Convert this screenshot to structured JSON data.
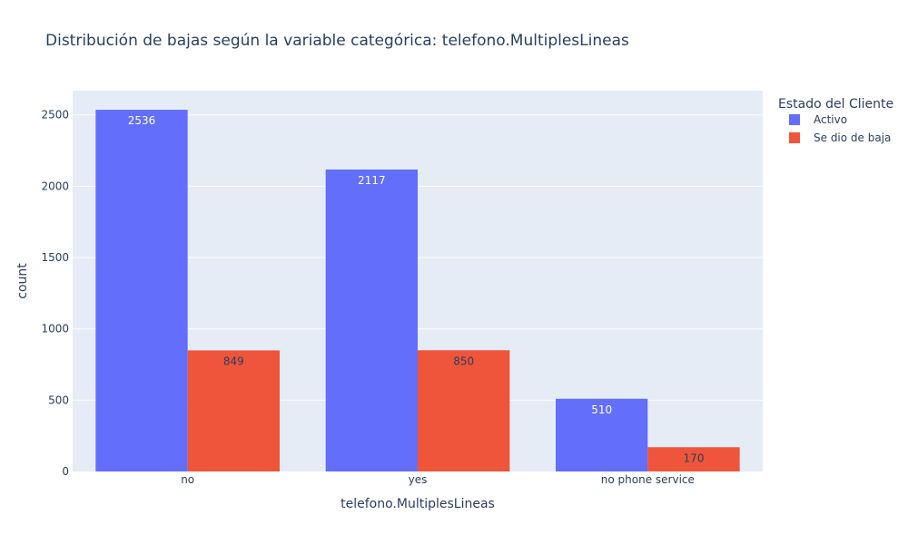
{
  "chart_data": {
    "type": "bar",
    "title": "Distribución de bajas según la variable categórica: telefono.MultiplesLineas",
    "xlabel": "telefono.MultiplesLineas",
    "ylabel": "count",
    "categories": [
      "no",
      "yes",
      "no phone service"
    ],
    "series": [
      {
        "name": "Activo",
        "values": [
          2536,
          2117,
          510
        ],
        "color": "#636efa",
        "label_color": "#ffffff"
      },
      {
        "name": "Se dio de baja",
        "values": [
          849,
          850,
          170
        ],
        "color": "#ef553b",
        "label_color": "#2a3f5f"
      }
    ],
    "ylim": [
      0,
      2670
    ],
    "yticks": [
      0,
      500,
      1000,
      1500,
      2000,
      2500
    ],
    "legend": {
      "title": "Estado del Cliente",
      "placement": "top-right-outside"
    },
    "grid": true,
    "background_color": "#e5ecf6",
    "barmode": "group"
  }
}
